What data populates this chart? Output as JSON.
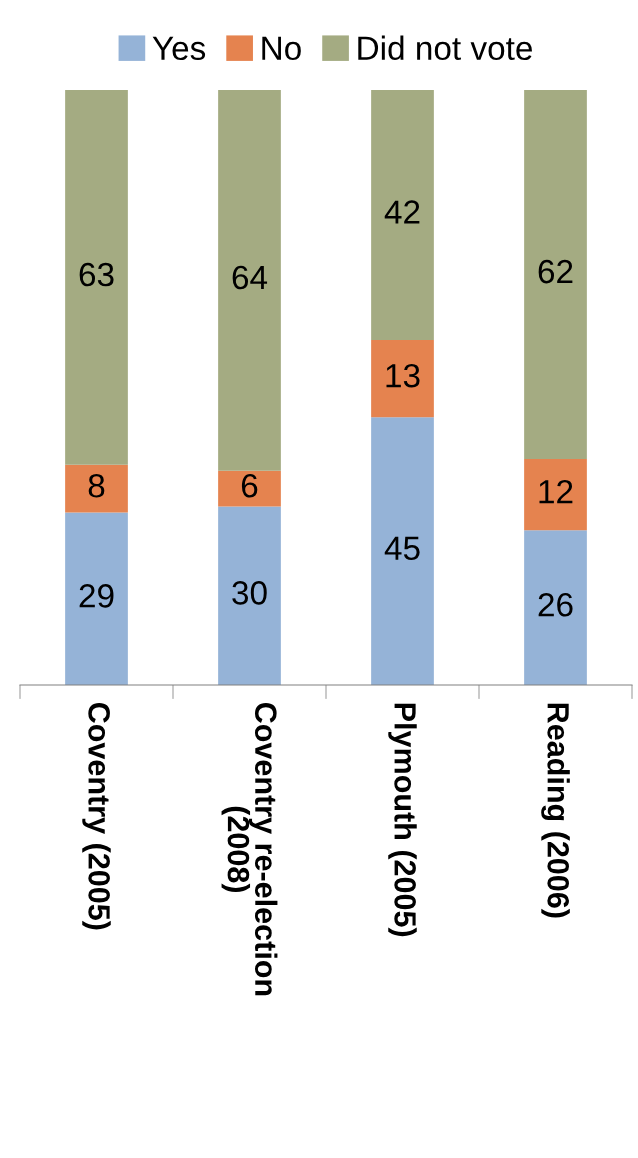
{
  "chart_data": {
    "type": "bar",
    "stacked": true,
    "categories": [
      "Coventry (2005)",
      "Coventry re-election (2008)",
      "Plymouth (2005)",
      "Reading (2006)"
    ],
    "series": [
      {
        "name": "Yes",
        "color": "#95b3d7",
        "values": [
          29,
          30,
          45,
          26
        ]
      },
      {
        "name": "No",
        "color": "#e5834f",
        "values": [
          8,
          6,
          13,
          12
        ]
      },
      {
        "name": "Did not vote",
        "color": "#a4ab82",
        "values": [
          63,
          64,
          42,
          62
        ]
      }
    ],
    "data_labels": true,
    "legend": "top",
    "grid": false
  }
}
